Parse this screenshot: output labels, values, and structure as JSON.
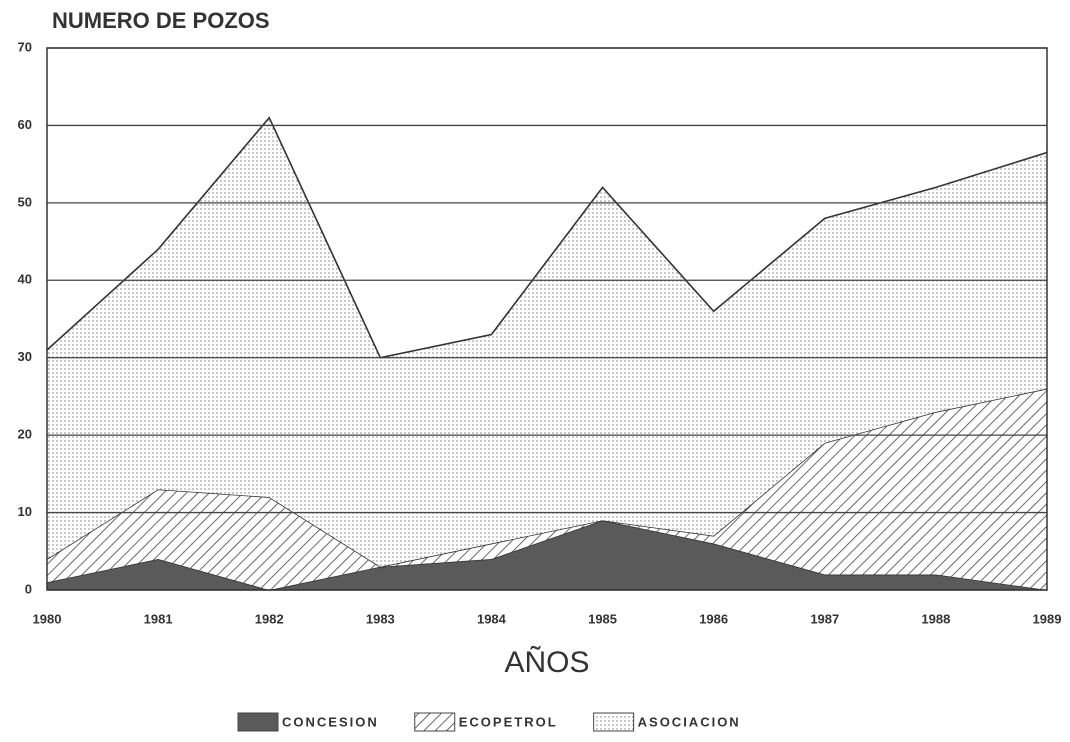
{
  "chart_data": {
    "type": "stacked_area",
    "title": "NUMERO DE POZOS",
    "x_label": "AÑOS",
    "categories": [
      "1980",
      "1981",
      "1982",
      "1983",
      "1984",
      "1985",
      "1986",
      "1987",
      "1988",
      "1989"
    ],
    "series": [
      {
        "name": "CONCESION",
        "color": "#5a5a5a",
        "fill": "solid",
        "values": [
          1,
          4,
          0,
          3,
          4,
          9,
          6,
          2,
          2,
          0
        ]
      },
      {
        "name": "ECOPETROL",
        "color": "#444444",
        "fill": "hatch",
        "values": [
          3,
          9,
          12,
          0,
          2,
          0,
          1,
          17,
          21,
          26
        ]
      },
      {
        "name": "ASOCIACION",
        "color": "#777777",
        "fill": "dots",
        "values": [
          27,
          31,
          49,
          27,
          27,
          43,
          29,
          29,
          29,
          30.5
        ]
      }
    ],
    "ylim": [
      0,
      70
    ],
    "yticks": [
      0,
      10,
      20,
      30,
      40,
      50,
      60,
      70
    ],
    "grid": true
  }
}
